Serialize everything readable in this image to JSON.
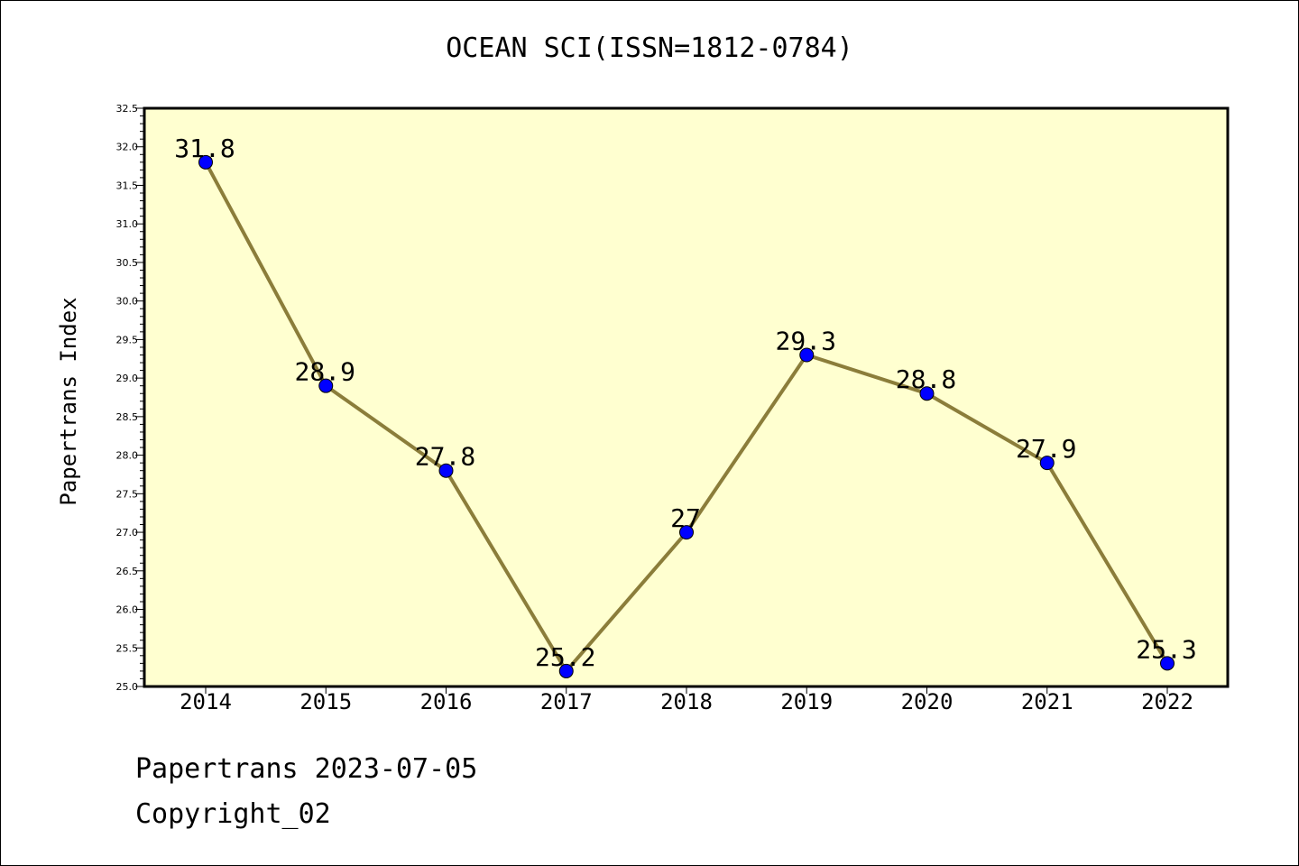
{
  "chart_data": {
    "type": "line",
    "title": "OCEAN SCI(ISSN=1812-0784)",
    "xlabel": "",
    "ylabel": "Papertrans Index",
    "categories": [
      "2014",
      "2015",
      "2016",
      "2017",
      "2018",
      "2019",
      "2020",
      "2021",
      "2022"
    ],
    "values": [
      31.8,
      28.9,
      27.8,
      25.2,
      27,
      29.3,
      28.8,
      27.9,
      25.3
    ],
    "data_labels": [
      "31.8",
      "28.9",
      "27.8",
      "25.2",
      "27",
      "29.3",
      "28.8",
      "27.9",
      "25.3"
    ],
    "ylim": [
      25.0,
      32.5
    ],
    "yticks": [
      "25.0",
      "25.5",
      "26.0",
      "26.5",
      "27.0",
      "27.5",
      "28.0",
      "28.5",
      "29.0",
      "29.5",
      "30.0",
      "30.5",
      "31.0",
      "31.5",
      "32.0",
      "32.5"
    ],
    "grid": false,
    "colors": {
      "plot_bg": "#ffffd0",
      "line": "#8b7d3a",
      "marker": "#0000ff"
    }
  },
  "footer": {
    "date_line": "Papertrans 2023-07-05",
    "copyright": "Copyright_02"
  }
}
